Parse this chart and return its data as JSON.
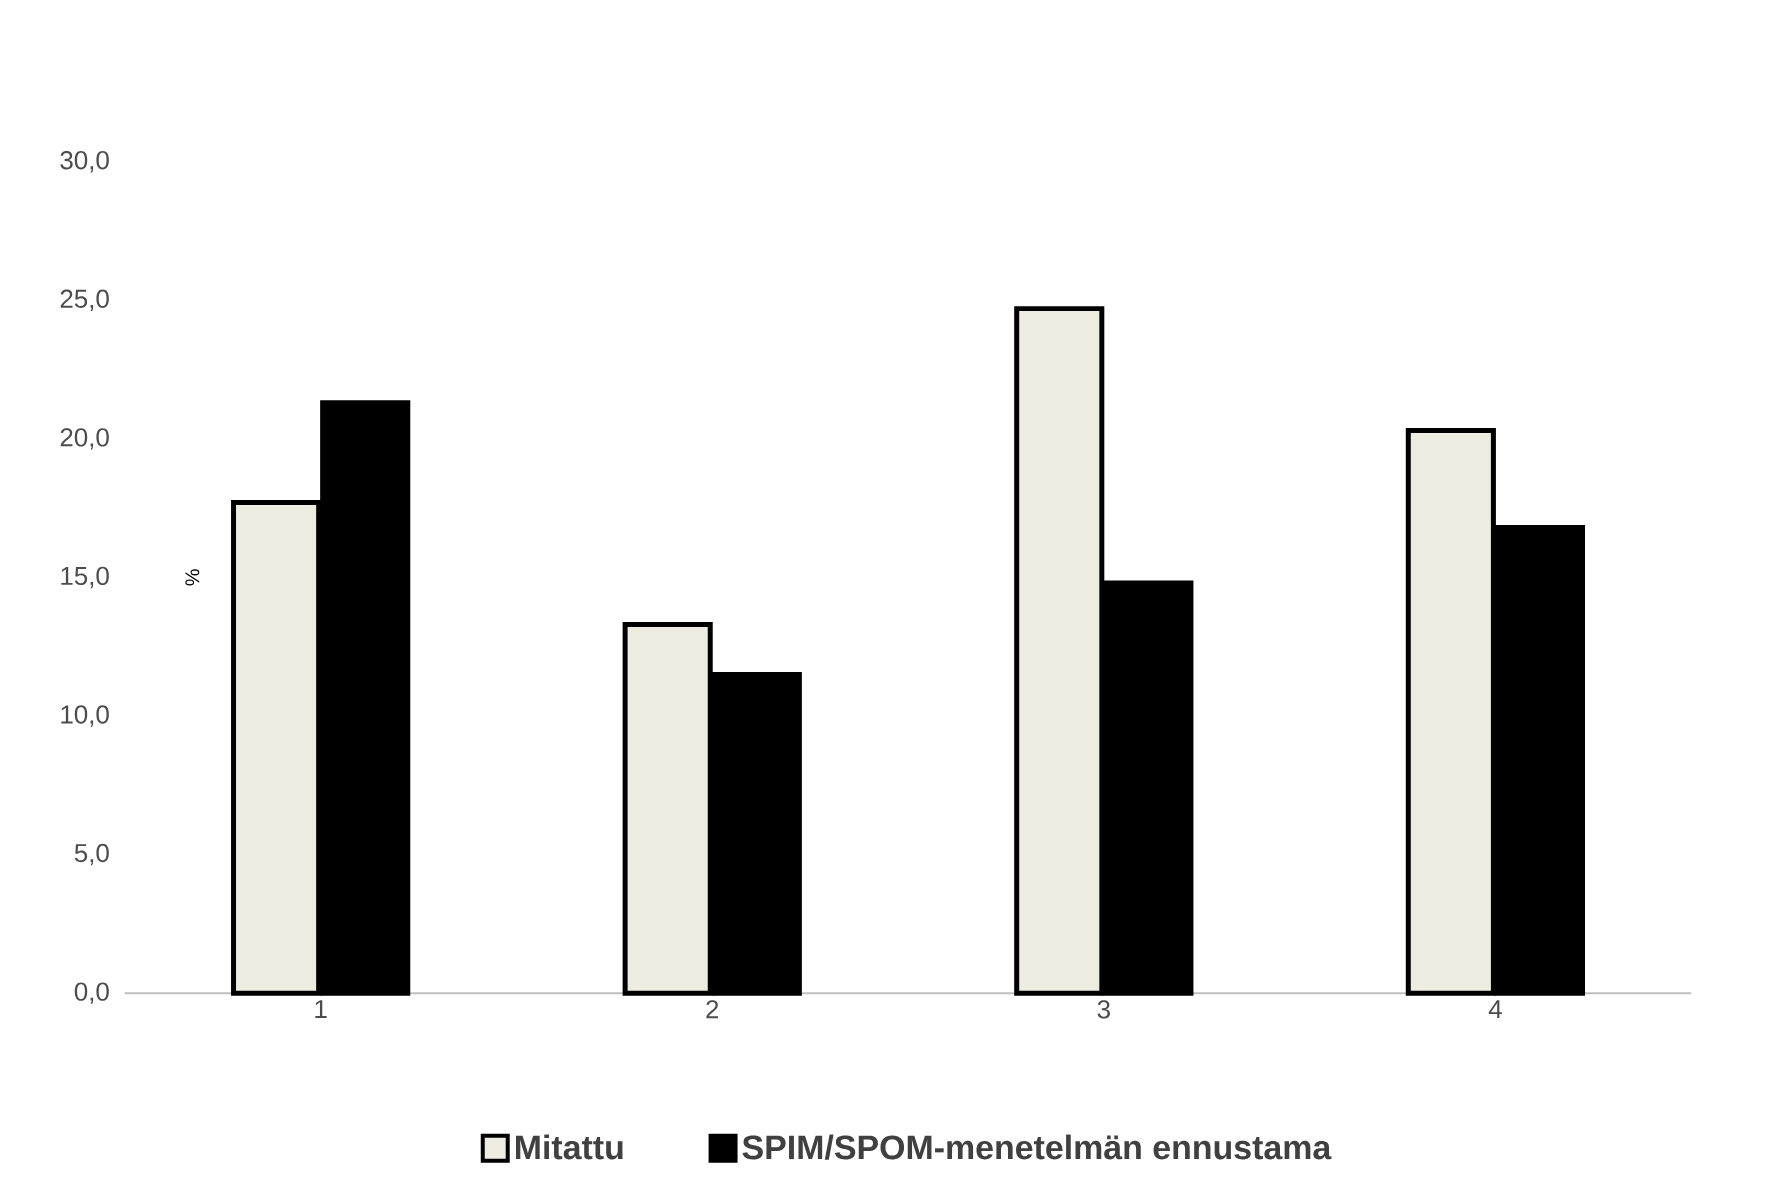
{
  "chart_data": {
    "type": "bar",
    "ylabel": "%",
    "categories": [
      "1",
      "2",
      "3",
      "4"
    ],
    "series": [
      {
        "name": "Mitattu",
        "color": "#eeebe0",
        "values": [
          17.7,
          13.3,
          24.7,
          20.3
        ]
      },
      {
        "name": "SPIM/SPOM-menetelmän ennustama",
        "color": "#000000",
        "values": [
          21.3,
          11.5,
          14.8,
          16.8
        ]
      }
    ],
    "ylim": [
      0,
      30
    ],
    "yticks": [
      {
        "value": 0,
        "label": "0,0"
      },
      {
        "value": 5,
        "label": "5,0"
      },
      {
        "value": 10,
        "label": "10,0"
      },
      {
        "value": 15,
        "label": "15,0"
      },
      {
        "value": 20,
        "label": "20,0"
      },
      {
        "value": 25,
        "label": "25,0"
      },
      {
        "value": 30,
        "label": "30,0"
      }
    ],
    "grid": false,
    "legend": "bottom"
  }
}
